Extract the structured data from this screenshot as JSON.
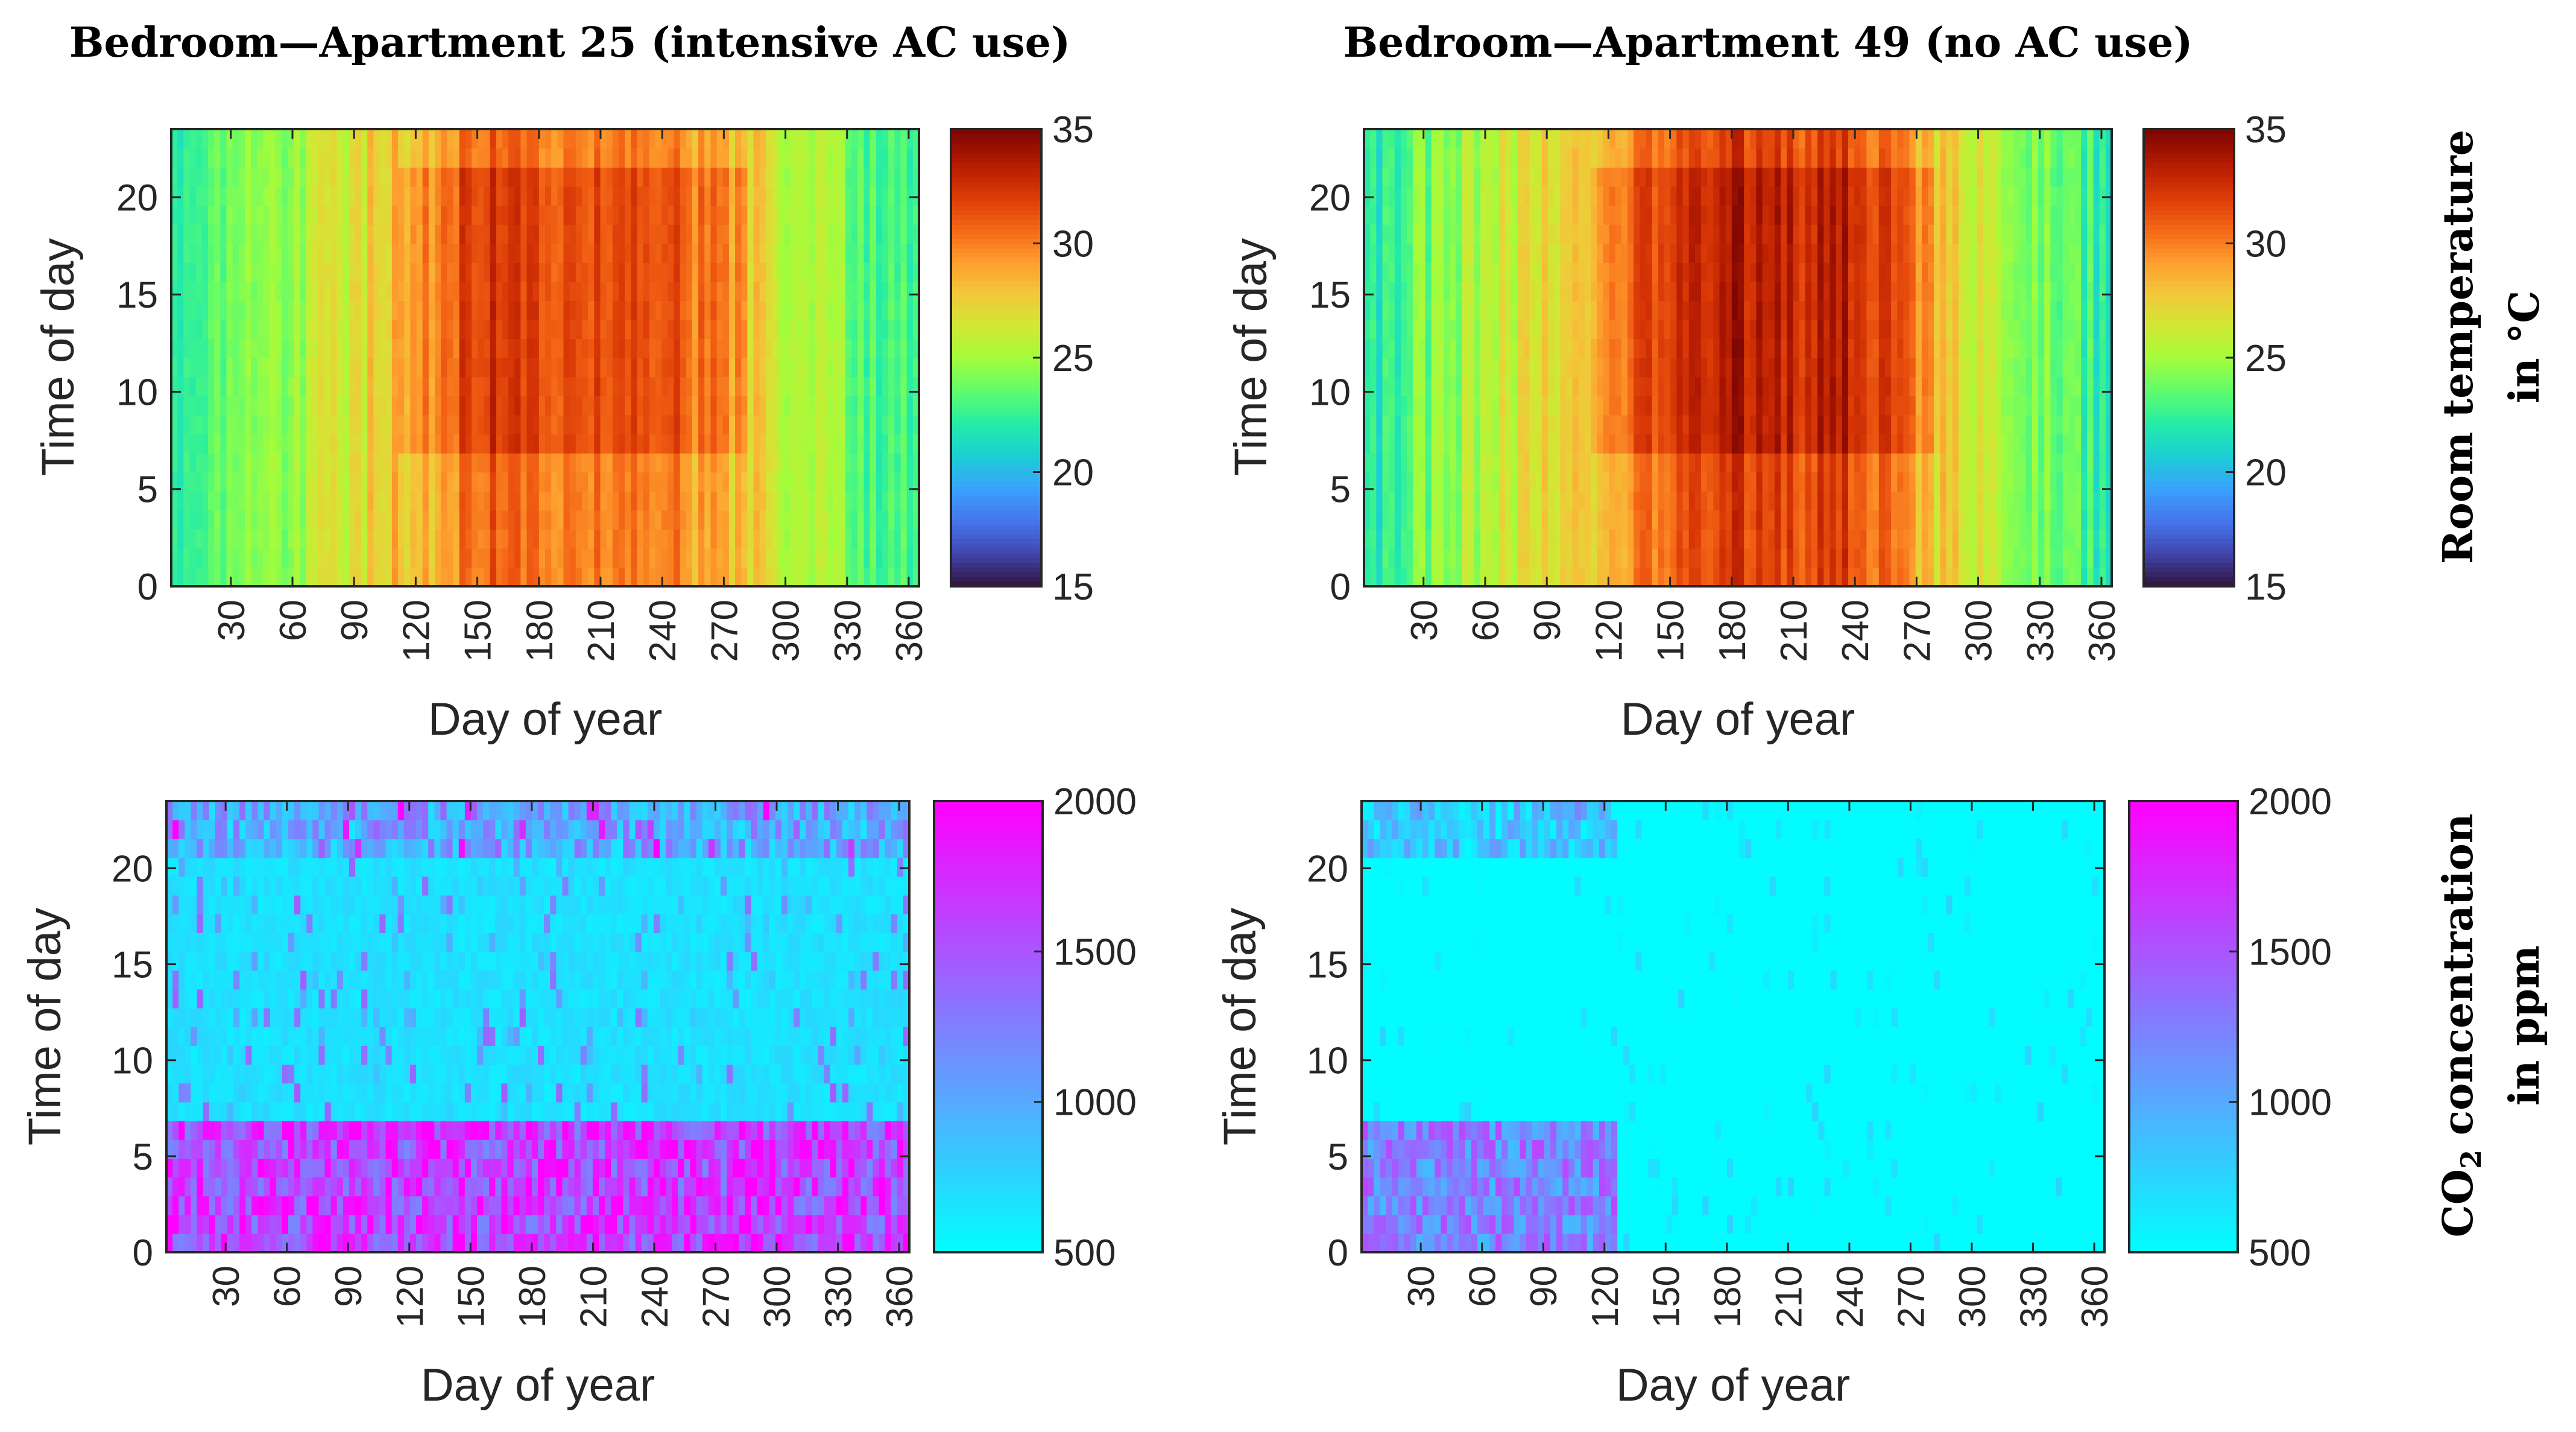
{
  "chart_data": [
    {
      "type": "heatmap",
      "title": "Bedroom—Apartment 25 (intensive AC use)",
      "xlabel": "Day of year",
      "ylabel": "Time of day",
      "xlim": [
        1,
        365
      ],
      "ylim": [
        0,
        23.5
      ],
      "xticks": [
        "30",
        "60",
        "90",
        "120",
        "150",
        "180",
        "210",
        "240",
        "270",
        "300",
        "330",
        "360"
      ],
      "yticks": [
        "0",
        "5",
        "10",
        "15",
        "20"
      ],
      "colorbar": {
        "min": 15,
        "max": 35,
        "ticks": [
          "15",
          "20",
          "25",
          "30",
          "35"
        ],
        "colormap": "turbo"
      },
      "description_profile": {
        "days": [
          1,
          30,
          60,
          90,
          120,
          150,
          180,
          210,
          240,
          270,
          300,
          330,
          365
        ],
        "mean_value": [
          22,
          23,
          25,
          27,
          28.5,
          31.5,
          31,
          30.5,
          30.5,
          29,
          26,
          24,
          22
        ]
      }
    },
    {
      "type": "heatmap",
      "title": "Bedroom—Apartment 49 (no AC use)",
      "xlabel": "Day of year",
      "ylabel": "Time of day",
      "xlim": [
        1,
        365
      ],
      "ylim": [
        0,
        23.5
      ],
      "xticks": [
        "30",
        "60",
        "90",
        "120",
        "150",
        "180",
        "210",
        "240",
        "270",
        "300",
        "330",
        "360"
      ],
      "yticks": [
        "0",
        "5",
        "10",
        "15",
        "20"
      ],
      "colorbar": {
        "min": 15,
        "max": 35,
        "ticks": [
          "15",
          "20",
          "25",
          "30",
          "35"
        ],
        "colormap": "turbo"
      },
      "description_profile": {
        "days": [
          1,
          30,
          60,
          90,
          120,
          150,
          180,
          210,
          240,
          270,
          300,
          330,
          365
        ],
        "mean_value": [
          21,
          24,
          25.5,
          27,
          28.5,
          32,
          32.5,
          32,
          32.5,
          29,
          26,
          24,
          22
        ]
      }
    },
    {
      "type": "heatmap",
      "title": "",
      "xlabel": "Day of year",
      "ylabel": "Time of day",
      "xlim": [
        1,
        365
      ],
      "ylim": [
        0,
        23.5
      ],
      "xticks": [
        "30",
        "60",
        "90",
        "120",
        "150",
        "180",
        "210",
        "240",
        "270",
        "300",
        "330",
        "360"
      ],
      "yticks": [
        "0",
        "5",
        "10",
        "15",
        "20"
      ],
      "colorbar": {
        "min": 500,
        "max": 2000,
        "ticks": [
          "500",
          "1000",
          "1500",
          "2000"
        ],
        "colormap": "cool"
      },
      "description_profile": {
        "night_hours_0_7_mean": 1500,
        "day_hours_7_22_mean": 600
      }
    },
    {
      "type": "heatmap",
      "title": "",
      "xlabel": "Day of year",
      "ylabel": "Time of day",
      "xlim": [
        1,
        365
      ],
      "ylim": [
        0,
        23.5
      ],
      "xticks": [
        "30",
        "60",
        "90",
        "120",
        "150",
        "180",
        "210",
        "240",
        "270",
        "300",
        "330",
        "360"
      ],
      "yticks": [
        "0",
        "5",
        "10",
        "15",
        "20"
      ],
      "colorbar": {
        "min": 500,
        "max": 2000,
        "ticks": [
          "500",
          "1000",
          "1500",
          "2000"
        ],
        "colormap": "cool"
      },
      "description_profile": {
        "days_1_120_night_mean": 1100,
        "rest_mean": 520
      }
    }
  ],
  "row_labels": {
    "temperature_line1": "Room temperature",
    "temperature_line2": "in °C",
    "co2_prefix": "CO",
    "co2_sub": "2",
    "co2_suffix": " concentration",
    "co2_line2": "in ppm"
  }
}
